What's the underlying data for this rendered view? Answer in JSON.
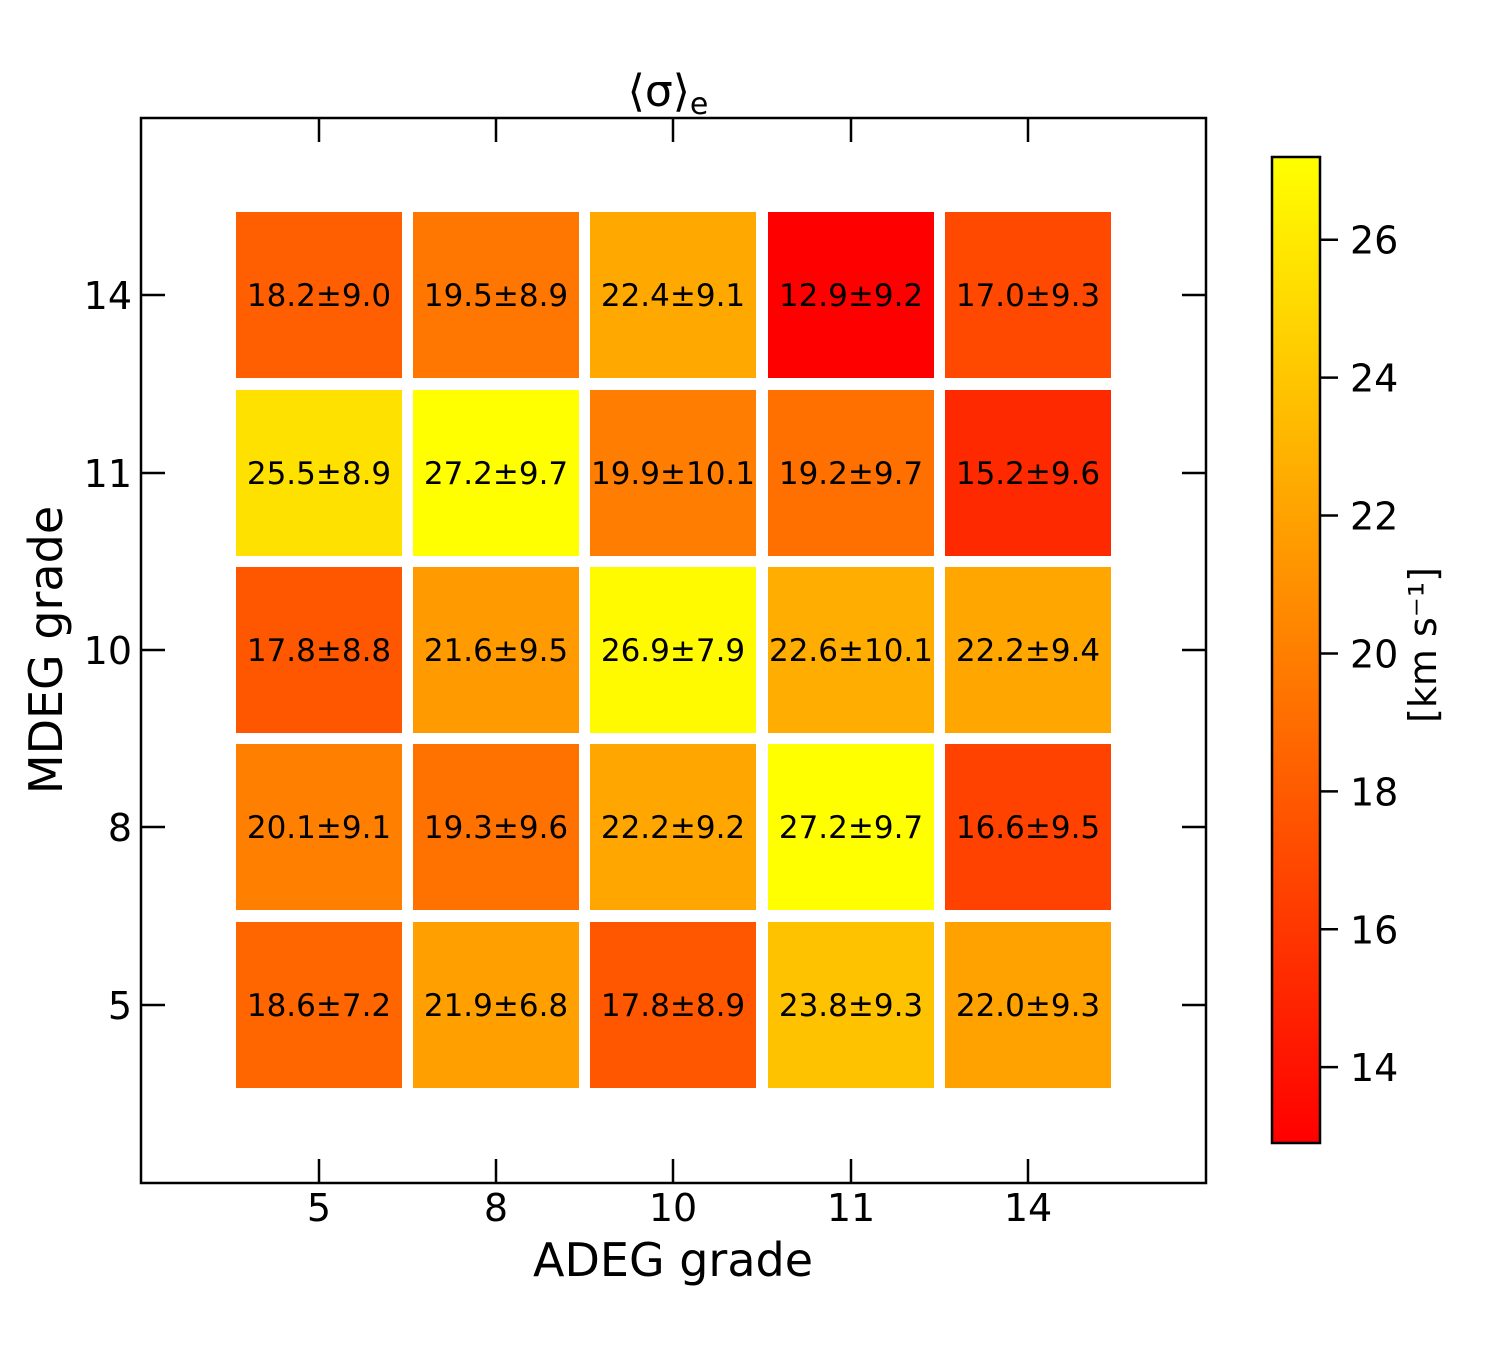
{
  "chart_data": {
    "type": "heatmap",
    "title_symbol": "⟨σ⟩",
    "title_subscript": "e",
    "xlabel": "ADEG grade",
    "ylabel": "MDEG grade",
    "x_categories": [
      "5",
      "8",
      "10",
      "11",
      "14"
    ],
    "y_categories": [
      "5",
      "8",
      "10",
      "11",
      "14"
    ],
    "rows": [
      {
        "y": "14",
        "values": [
          18.2,
          19.5,
          22.4,
          12.9,
          17.0
        ],
        "labels": [
          "18.2±9.0",
          "19.5±8.9",
          "22.4±9.1",
          "12.9±9.2",
          "17.0±9.3"
        ]
      },
      {
        "y": "11",
        "values": [
          25.5,
          27.2,
          19.9,
          19.2,
          15.2
        ],
        "labels": [
          "25.5±8.9",
          "27.2±9.7",
          "19.9±10.1",
          "19.2±9.7",
          "15.2±9.6"
        ]
      },
      {
        "y": "10",
        "values": [
          17.8,
          21.6,
          26.9,
          22.6,
          22.2
        ],
        "labels": [
          "17.8±8.8",
          "21.6±9.5",
          "26.9±7.9",
          "22.6±10.1",
          "22.2±9.4"
        ]
      },
      {
        "y": "8",
        "values": [
          20.1,
          19.3,
          22.2,
          27.2,
          16.6
        ],
        "labels": [
          "20.1±9.1",
          "19.3±9.6",
          "22.2±9.2",
          "27.2±9.7",
          "16.6±9.5"
        ]
      },
      {
        "y": "5",
        "values": [
          18.6,
          21.9,
          17.8,
          23.8,
          22.0
        ],
        "labels": [
          "18.6±7.2",
          "21.9±6.8",
          "17.8±8.9",
          "23.8±9.3",
          "22.0±9.3"
        ]
      }
    ],
    "colorbar": {
      "label": "[km s⁻¹]",
      "range": [
        12.9,
        27.2
      ],
      "ticks": [
        14,
        16,
        18,
        20,
        22,
        24,
        26
      ],
      "colormap": "autumn",
      "color_low": "#ff0000",
      "color_high": "#ffff00"
    }
  }
}
